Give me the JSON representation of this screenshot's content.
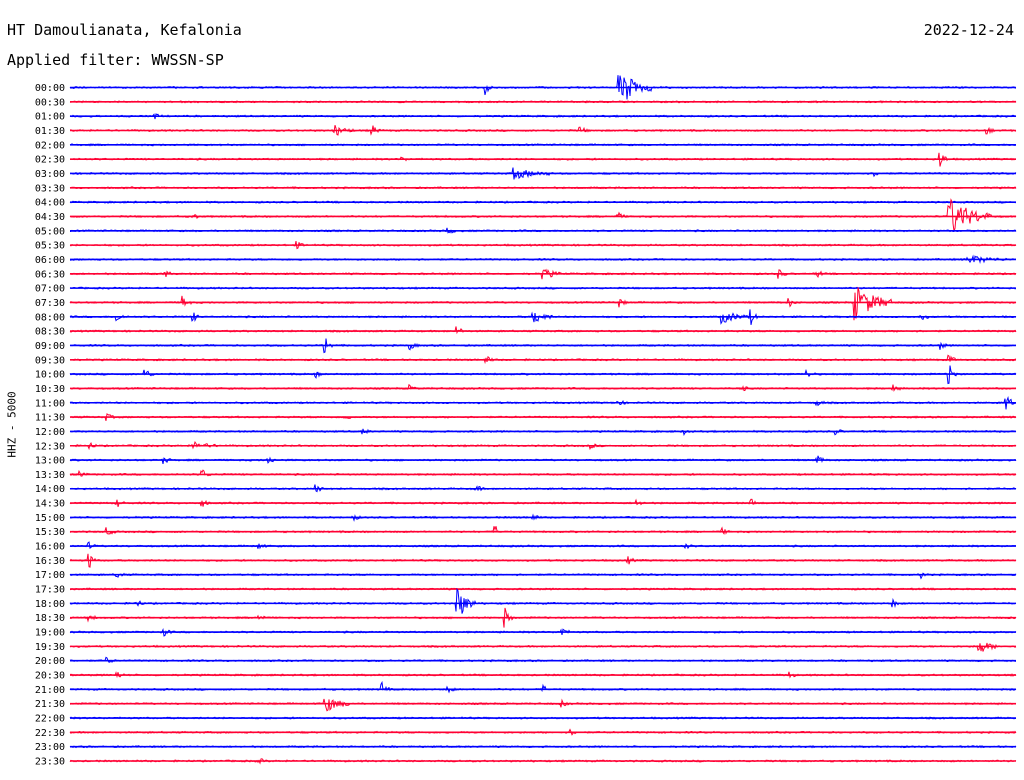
{
  "header": {
    "station": "HT Damoulianata, Kefalonia",
    "date": "2022-12-24",
    "filter": "Applied filter: WWSSN-SP"
  },
  "chart_data": {
    "type": "line",
    "ylabel": "HHZ - 5000",
    "xlabel": "",
    "colors": [
      "#0000ff",
      "#ff0033"
    ],
    "grid": false,
    "legend": "none",
    "rows": [
      {
        "time": "00:00",
        "events": [
          {
            "x": 0.44,
            "a": 1.2
          },
          {
            "x": 0.58,
            "a": 3.6,
            "d": 0.035
          }
        ]
      },
      {
        "time": "00:30",
        "events": []
      },
      {
        "time": "01:00",
        "events": [
          {
            "x": 0.09,
            "a": 0.4
          }
        ]
      },
      {
        "time": "01:30",
        "events": [
          {
            "x": 0.28,
            "a": 0.9,
            "d": 0.02
          },
          {
            "x": 0.32,
            "a": 0.8
          },
          {
            "x": 0.54,
            "a": 0.6
          },
          {
            "x": 0.97,
            "a": 0.6
          }
        ]
      },
      {
        "time": "02:00",
        "events": []
      },
      {
        "time": "02:30",
        "events": [
          {
            "x": 0.92,
            "a": 1.5
          },
          {
            "x": 0.35,
            "a": 0.4
          }
        ]
      },
      {
        "time": "03:00",
        "events": [
          {
            "x": 0.47,
            "a": 0.9,
            "d": 0.04
          },
          {
            "x": 0.85,
            "a": 0.5
          }
        ]
      },
      {
        "time": "03:30",
        "events": []
      },
      {
        "time": "04:00",
        "events": []
      },
      {
        "time": "04:30",
        "events": [
          {
            "x": 0.13,
            "a": 0.5
          },
          {
            "x": 0.58,
            "a": 0.6
          },
          {
            "x": 0.93,
            "a": 3.2,
            "d": 0.045
          }
        ]
      },
      {
        "time": "05:00",
        "events": [
          {
            "x": 0.4,
            "a": 0.6
          }
        ]
      },
      {
        "time": "05:30",
        "events": [
          {
            "x": 0.24,
            "a": 0.6
          }
        ]
      },
      {
        "time": "06:00",
        "events": [
          {
            "x": 0.95,
            "a": 0.7,
            "d": 0.04
          }
        ]
      },
      {
        "time": "06:30",
        "events": [
          {
            "x": 0.1,
            "a": 0.6
          },
          {
            "x": 0.5,
            "a": 0.9,
            "d": 0.02
          },
          {
            "x": 0.75,
            "a": 0.7
          },
          {
            "x": 0.79,
            "a": 0.7
          }
        ]
      },
      {
        "time": "07:00",
        "events": []
      },
      {
        "time": "07:30",
        "events": [
          {
            "x": 0.12,
            "a": 1.0
          },
          {
            "x": 0.58,
            "a": 0.9
          },
          {
            "x": 0.76,
            "a": 0.8
          },
          {
            "x": 0.83,
            "a": 3.0,
            "d": 0.04
          }
        ]
      },
      {
        "time": "08:00",
        "events": [
          {
            "x": 0.05,
            "a": 0.8
          },
          {
            "x": 0.13,
            "a": 0.8
          },
          {
            "x": 0.49,
            "a": 1.2,
            "d": 0.02
          },
          {
            "x": 0.69,
            "a": 1.0,
            "d": 0.03
          },
          {
            "x": 0.72,
            "a": 1.1
          },
          {
            "x": 0.9,
            "a": 0.6
          }
        ]
      },
      {
        "time": "08:30",
        "events": [
          {
            "x": 0.41,
            "a": 0.7
          }
        ]
      },
      {
        "time": "09:00",
        "events": [
          {
            "x": 0.27,
            "a": 1.7
          },
          {
            "x": 0.36,
            "a": 0.6
          },
          {
            "x": 0.92,
            "a": 0.6
          }
        ]
      },
      {
        "time": "09:30",
        "events": [
          {
            "x": 0.44,
            "a": 0.6
          },
          {
            "x": 0.93,
            "a": 0.7
          }
        ]
      },
      {
        "time": "10:00",
        "events": [
          {
            "x": 0.08,
            "a": 0.9
          },
          {
            "x": 0.26,
            "a": 0.5
          },
          {
            "x": 0.78,
            "a": 0.5
          },
          {
            "x": 0.93,
            "a": 1.8
          }
        ]
      },
      {
        "time": "10:30",
        "events": [
          {
            "x": 0.36,
            "a": 0.5
          },
          {
            "x": 0.71,
            "a": 0.5
          },
          {
            "x": 0.87,
            "a": 0.6
          }
        ]
      },
      {
        "time": "11:00",
        "events": [
          {
            "x": 0.58,
            "a": 0.5
          },
          {
            "x": 0.79,
            "a": 0.5
          },
          {
            "x": 0.99,
            "a": 1.5
          }
        ]
      },
      {
        "time": "11:30",
        "events": [
          {
            "x": 0.04,
            "a": 0.5
          },
          {
            "x": 0.29,
            "a": 0.5
          }
        ]
      },
      {
        "time": "12:00",
        "events": [
          {
            "x": 0.31,
            "a": 0.5
          },
          {
            "x": 0.65,
            "a": 0.5
          },
          {
            "x": 0.81,
            "a": 0.5
          }
        ]
      },
      {
        "time": "12:30",
        "events": [
          {
            "x": 0.02,
            "a": 0.6
          },
          {
            "x": 0.13,
            "a": 0.6,
            "d": 0.03
          },
          {
            "x": 0.55,
            "a": 0.5
          }
        ]
      },
      {
        "time": "13:00",
        "events": [
          {
            "x": 0.1,
            "a": 0.5
          },
          {
            "x": 0.21,
            "a": 0.6
          },
          {
            "x": 0.79,
            "a": 1.0
          }
        ]
      },
      {
        "time": "13:30",
        "events": [
          {
            "x": 0.01,
            "a": 0.6
          },
          {
            "x": 0.14,
            "a": 0.8
          }
        ]
      },
      {
        "time": "14:00",
        "events": [
          {
            "x": 0.26,
            "a": 0.7
          },
          {
            "x": 0.43,
            "a": 0.5
          }
        ]
      },
      {
        "time": "14:30",
        "events": [
          {
            "x": 0.05,
            "a": 0.6
          },
          {
            "x": 0.14,
            "a": 0.6
          },
          {
            "x": 0.6,
            "a": 0.5
          },
          {
            "x": 0.72,
            "a": 0.7
          }
        ]
      },
      {
        "time": "15:00",
        "events": [
          {
            "x": 0.3,
            "a": 0.4
          },
          {
            "x": 0.49,
            "a": 0.4
          }
        ]
      },
      {
        "time": "15:30",
        "events": [
          {
            "x": 0.04,
            "a": 0.6
          },
          {
            "x": 0.45,
            "a": 0.9
          },
          {
            "x": 0.69,
            "a": 0.5
          }
        ]
      },
      {
        "time": "16:00",
        "events": [
          {
            "x": 0.02,
            "a": 0.6
          },
          {
            "x": 0.2,
            "a": 0.5
          },
          {
            "x": 0.65,
            "a": 0.5
          }
        ]
      },
      {
        "time": "16:30",
        "events": [
          {
            "x": 0.02,
            "a": 1.5
          },
          {
            "x": 0.59,
            "a": 0.6
          }
        ]
      },
      {
        "time": "17:00",
        "events": [
          {
            "x": 0.05,
            "a": 0.5
          },
          {
            "x": 0.9,
            "a": 0.5
          }
        ]
      },
      {
        "time": "17:30",
        "events": []
      },
      {
        "time": "18:00",
        "events": [
          {
            "x": 0.07,
            "a": 0.7
          },
          {
            "x": 0.41,
            "a": 2.6,
            "d": 0.02
          },
          {
            "x": 0.87,
            "a": 0.6
          }
        ]
      },
      {
        "time": "18:30",
        "events": [
          {
            "x": 0.02,
            "a": 0.6
          },
          {
            "x": 0.2,
            "a": 0.6
          },
          {
            "x": 0.46,
            "a": 1.6
          }
        ]
      },
      {
        "time": "19:00",
        "events": [
          {
            "x": 0.1,
            "a": 0.6
          },
          {
            "x": 0.52,
            "a": 0.8
          }
        ]
      },
      {
        "time": "19:30",
        "events": [
          {
            "x": 0.96,
            "a": 1.4,
            "d": 0.02
          }
        ]
      },
      {
        "time": "20:00",
        "events": [
          {
            "x": 0.04,
            "a": 0.5
          }
        ]
      },
      {
        "time": "20:30",
        "events": [
          {
            "x": 0.05,
            "a": 0.6
          },
          {
            "x": 0.76,
            "a": 0.6
          }
        ]
      },
      {
        "time": "21:00",
        "events": [
          {
            "x": 0.33,
            "a": 1.1
          },
          {
            "x": 0.4,
            "a": 0.6
          },
          {
            "x": 0.5,
            "a": 0.6
          }
        ]
      },
      {
        "time": "21:30",
        "events": [
          {
            "x": 0.27,
            "a": 1.3,
            "d": 0.03
          },
          {
            "x": 0.52,
            "a": 0.5
          }
        ]
      },
      {
        "time": "22:00",
        "events": []
      },
      {
        "time": "22:30",
        "events": [
          {
            "x": 0.53,
            "a": 0.5
          }
        ]
      },
      {
        "time": "23:00",
        "events": []
      },
      {
        "time": "23:30",
        "events": [
          {
            "x": 0.2,
            "a": 0.5
          }
        ]
      }
    ]
  }
}
